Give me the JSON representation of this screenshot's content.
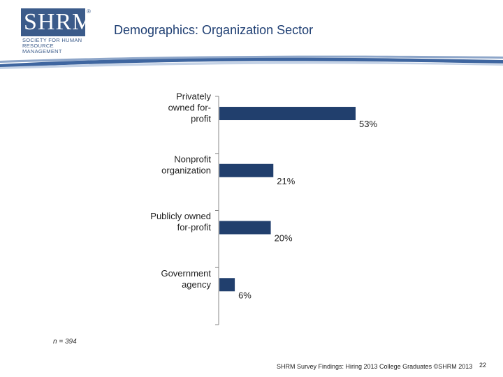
{
  "logo": {
    "letters": "SHRM",
    "reg_mark": "®",
    "subtitle_lines": [
      "SOCIETY FOR HUMAN",
      "RESOURCE MANAGEMENT"
    ]
  },
  "slide_title": "Demographics: Organization Sector",
  "sample_size": "n = 394",
  "footer": "SHRM Survey Findings: Hiring 2013 College Graduates ©SHRM 2013",
  "page_number": "22",
  "colors": {
    "bar": "#213f6d",
    "title": "#1f3f73",
    "axis": "#888888"
  },
  "chart_data": {
    "type": "bar",
    "orientation": "horizontal",
    "title": "Demographics: Organization Sector",
    "categories": [
      [
        "Privately",
        "owned for-",
        "profit"
      ],
      [
        "Nonprofit",
        "organization"
      ],
      [
        "Publicly owned",
        "for-profit"
      ],
      [
        "Government",
        "agency"
      ]
    ],
    "values": [
      53,
      21,
      20,
      6
    ],
    "value_labels": [
      "53%",
      "21%",
      "20%",
      "6%"
    ],
    "xlim": [
      0,
      100
    ],
    "unit": "%"
  }
}
